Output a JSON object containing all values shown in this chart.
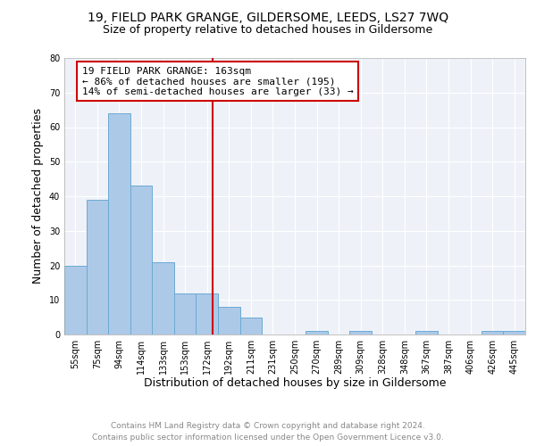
{
  "title": "19, FIELD PARK GRANGE, GILDERSOME, LEEDS, LS27 7WQ",
  "subtitle": "Size of property relative to detached houses in Gildersome",
  "xlabel": "Distribution of detached houses by size in Gildersome",
  "ylabel": "Number of detached properties",
  "bin_labels": [
    "55sqm",
    "75sqm",
    "94sqm",
    "114sqm",
    "133sqm",
    "153sqm",
    "172sqm",
    "192sqm",
    "211sqm",
    "231sqm",
    "250sqm",
    "270sqm",
    "289sqm",
    "309sqm",
    "328sqm",
    "348sqm",
    "367sqm",
    "387sqm",
    "406sqm",
    "426sqm",
    "445sqm"
  ],
  "bar_heights": [
    20,
    39,
    64,
    43,
    21,
    12,
    12,
    8,
    5,
    0,
    0,
    1,
    0,
    1,
    0,
    0,
    1,
    0,
    0,
    1,
    1
  ],
  "bar_color": "#adc9e8",
  "bar_edgecolor": "#6aaad4",
  "vline_x": 6.27,
  "vline_color": "#cc0000",
  "annotation_text": "19 FIELD PARK GRANGE: 163sqm\n← 86% of detached houses are smaller (195)\n14% of semi-detached houses are larger (33) →",
  "annotation_box_edgecolor": "#cc0000",
  "annotation_box_facecolor": "#ffffff",
  "ylim": [
    0,
    80
  ],
  "yticks": [
    0,
    10,
    20,
    30,
    40,
    50,
    60,
    70,
    80
  ],
  "footer1": "Contains HM Land Registry data © Crown copyright and database right 2024.",
  "footer2": "Contains public sector information licensed under the Open Government Licence v3.0.",
  "fig_facecolor": "#ffffff",
  "ax_facecolor": "#eef2f8",
  "title_fontsize": 10,
  "subtitle_fontsize": 9,
  "axis_label_fontsize": 9,
  "tick_fontsize": 7,
  "annotation_fontsize": 8,
  "footer_fontsize": 6.5
}
